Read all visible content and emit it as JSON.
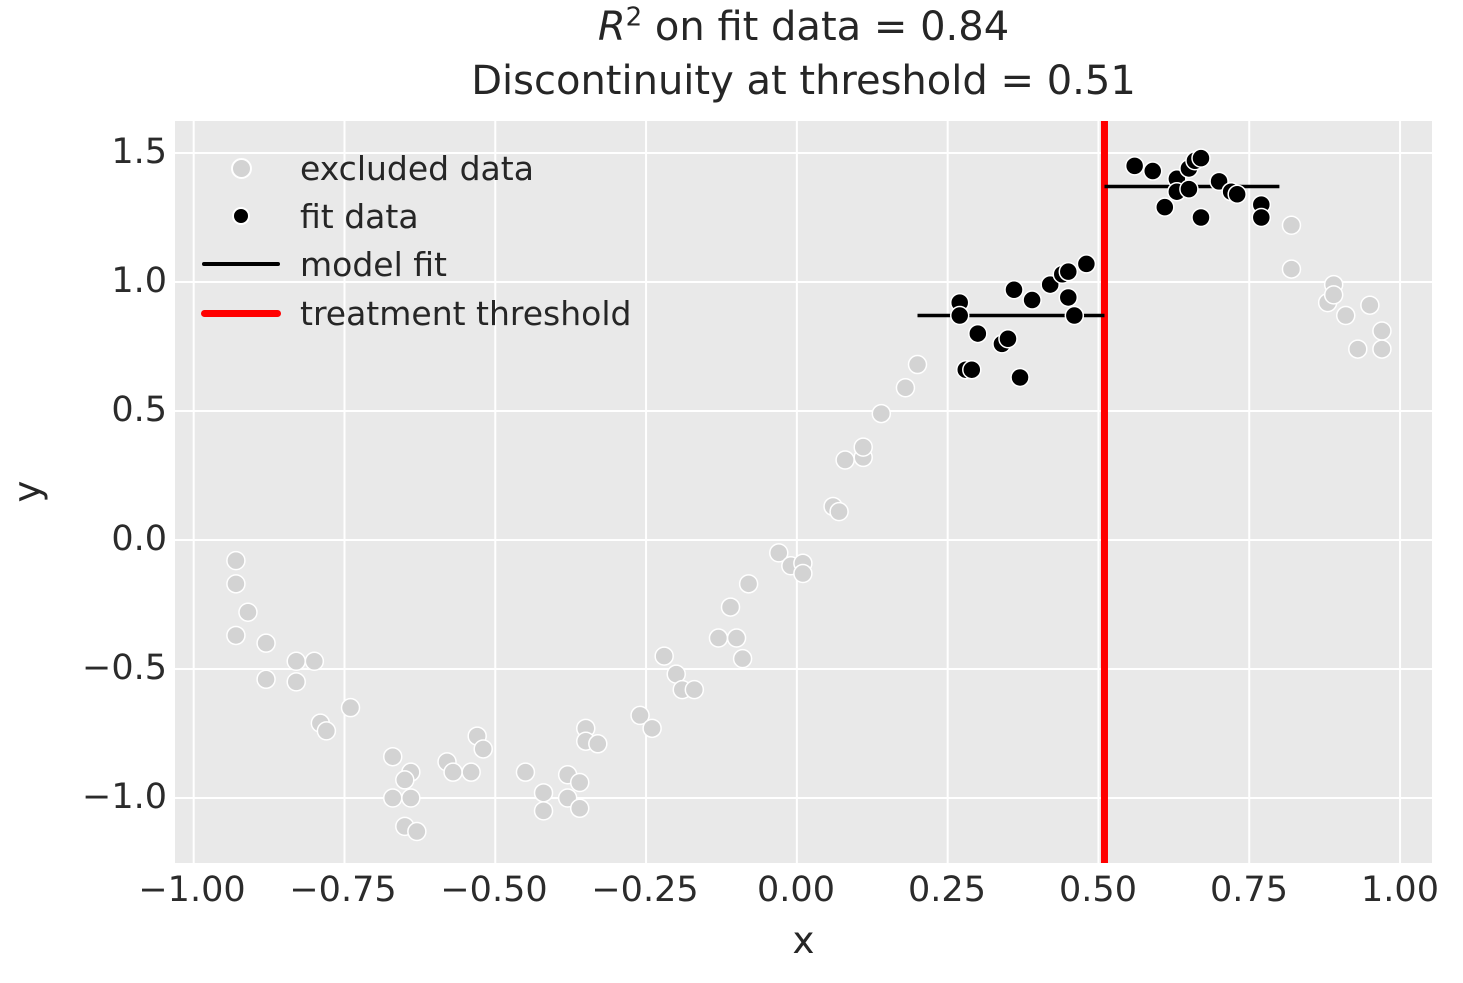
{
  "title": {
    "r_symbol": "R",
    "exponent": "2",
    "line1_rest": " on fit data = 0.84",
    "line2": "Discontinuity at threshold = 0.51"
  },
  "axes": {
    "xlabel": "x",
    "ylabel": "y",
    "x_tick_labels": [
      "−1.00",
      "−0.75",
      "−0.50",
      "−0.25",
      "0.00",
      "0.25",
      "0.50",
      "0.75",
      "1.00"
    ],
    "y_tick_labels": [
      "1.5",
      "1.0",
      "0.5",
      "0.0",
      "−0.5",
      "−1.0"
    ]
  },
  "legend": {
    "items": [
      {
        "label": "excluded data",
        "marker": "dot",
        "color": "#d3d3d3"
      },
      {
        "label": "fit data",
        "marker": "dot",
        "color": "#000000"
      },
      {
        "label": "model fit",
        "marker": "line",
        "color": "#000000"
      },
      {
        "label": "treatment threshold",
        "marker": "thick-line",
        "color": "#ff0000"
      }
    ]
  },
  "colors": {
    "figure_bg": "#ffffff",
    "axes_bg": "#e9e9e9",
    "grid": "#ffffff",
    "excluded": "#d3d3d3",
    "fit": "#000000",
    "model_fit": "#000000",
    "threshold": "#ff0000",
    "text": "#262626"
  },
  "chart_data": {
    "type": "scatter",
    "title": "R^2 on fit data = 0.84\nDiscontinuity at threshold = 0.51",
    "xlabel": "x",
    "ylabel": "y",
    "grid": true,
    "legend_position": "upper left",
    "xlim": [
      -1.031,
      1.053
    ],
    "ylim": [
      -1.252,
      1.624
    ],
    "x_tick_values": [
      -1.0,
      -0.75,
      -0.5,
      -0.25,
      0.0,
      0.25,
      0.5,
      0.75,
      1.0
    ],
    "y_tick_values": [
      -1.0,
      -0.5,
      0.0,
      0.5,
      1.0,
      1.5
    ],
    "r_squared_on_fit_data": 0.84,
    "discontinuity_at_threshold": 0.51,
    "threshold_x": 0.51,
    "model_fit_segments": [
      {
        "x0": 0.2,
        "x1": 0.51,
        "y": 0.87
      },
      {
        "x0": 0.51,
        "x1": 0.8,
        "y": 1.37
      }
    ],
    "series": [
      {
        "name": "excluded data",
        "point_name": "excluded-data-point",
        "color": "#d3d3d3",
        "x": [
          -0.93,
          -0.93,
          -0.91,
          -0.93,
          -0.88,
          -0.83,
          -0.8,
          -0.88,
          -0.83,
          -0.79,
          -0.78,
          -0.74,
          -0.67,
          -0.64,
          -0.65,
          -0.67,
          -0.64,
          -0.65,
          -0.63,
          -0.58,
          -0.57,
          -0.54,
          -0.53,
          -0.52,
          -0.45,
          -0.42,
          -0.42,
          -0.38,
          -0.36,
          -0.38,
          -0.36,
          -0.35,
          -0.35,
          -0.33,
          -0.26,
          -0.24,
          -0.22,
          -0.2,
          -0.19,
          -0.17,
          -0.13,
          -0.11,
          -0.1,
          -0.09,
          -0.08,
          -0.03,
          -0.01,
          0.01,
          0.01,
          0.06,
          0.07,
          0.08,
          0.11,
          0.11,
          0.14,
          0.18,
          0.2,
          0.82,
          0.82,
          0.88,
          0.89,
          0.89,
          0.91,
          0.93,
          0.95,
          0.97,
          0.97
        ],
        "y": [
          -0.08,
          -0.17,
          -0.28,
          -0.37,
          -0.4,
          -0.47,
          -0.47,
          -0.54,
          -0.55,
          -0.71,
          -0.74,
          -0.65,
          -0.84,
          -0.9,
          -0.93,
          -1.0,
          -1.0,
          -1.11,
          -1.13,
          -0.86,
          -0.9,
          -0.9,
          -0.76,
          -0.81,
          -0.9,
          -0.98,
          -1.05,
          -0.91,
          -0.94,
          -1.0,
          -1.04,
          -0.73,
          -0.78,
          -0.79,
          -0.68,
          -0.73,
          -0.45,
          -0.52,
          -0.58,
          -0.58,
          -0.38,
          -0.26,
          -0.38,
          -0.46,
          -0.17,
          -0.05,
          -0.1,
          -0.09,
          -0.13,
          0.13,
          0.11,
          0.31,
          0.32,
          0.36,
          0.49,
          0.59,
          0.68,
          1.22,
          1.05,
          0.92,
          0.99,
          0.95,
          0.87,
          0.74,
          0.91,
          0.81,
          0.74
        ]
      },
      {
        "name": "fit data",
        "point_name": "fit-data-point",
        "color": "#000000",
        "x": [
          0.27,
          0.27,
          0.28,
          0.29,
          0.3,
          0.34,
          0.35,
          0.36,
          0.37,
          0.39,
          0.42,
          0.44,
          0.45,
          0.45,
          0.46,
          0.48,
          0.56,
          0.59,
          0.61,
          0.63,
          0.63,
          0.65,
          0.65,
          0.66,
          0.67,
          0.67,
          0.7,
          0.72,
          0.73,
          0.77,
          0.77
        ],
        "y": [
          0.92,
          0.87,
          0.66,
          0.66,
          0.8,
          0.76,
          0.78,
          0.97,
          0.63,
          0.93,
          0.99,
          1.03,
          1.04,
          0.94,
          0.87,
          1.07,
          1.45,
          1.43,
          1.29,
          1.4,
          1.35,
          1.44,
          1.36,
          1.47,
          1.48,
          1.25,
          1.39,
          1.35,
          1.34,
          1.3,
          1.25
        ]
      }
    ]
  }
}
